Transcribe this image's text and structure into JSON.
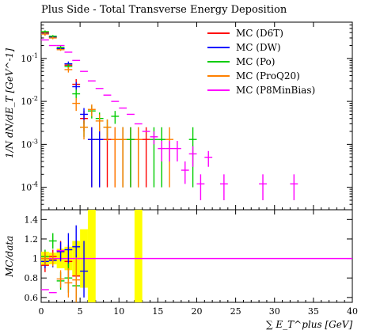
{
  "chart_data": {
    "type": "scatter",
    "title": "Plus Side - Total Transverse Energy Deposition",
    "xlabel": "∑ E_T^plus [GeV]",
    "top_ylabel": "1/N dN/dE_T [GeV^-1]",
    "bottom_ylabel": "MC/data",
    "top_yscale": "log",
    "top_yticks": [
      "10^-4",
      "10^-3",
      "10^-2",
      "10^-1"
    ],
    "top_ylim": [
      3e-05,
      0.7
    ],
    "bottom_ylim": [
      0.55,
      1.5
    ],
    "bottom_yticks": [
      "0.6",
      "0.8",
      "1",
      "1.2",
      "1.4"
    ],
    "xlim": [
      0,
      40
    ],
    "xticks": [
      "0",
      "5",
      "10",
      "15",
      "20",
      "25",
      "30",
      "35",
      "40"
    ],
    "legend_position": "top-right",
    "series": [
      {
        "name": "MC (D6T)",
        "color": "#ff0000",
        "points": [
          [
            0.5,
            0.4
          ],
          [
            1.5,
            0.32
          ],
          [
            2.5,
            0.17
          ],
          [
            3.5,
            0.07
          ],
          [
            4.5,
            0.025
          ],
          [
            5.5,
            0.004
          ],
          [
            6.5,
            0.0013
          ],
          [
            7.5,
            0.0013
          ],
          [
            8.5,
            0.0013
          ],
          [
            9.5,
            0.0013
          ],
          [
            10.5,
            0.0013
          ],
          [
            11.5,
            0.0013
          ],
          [
            12.5,
            0.0013
          ],
          [
            13.5,
            0.0013
          ]
        ],
        "errors": [
          [
            0.5,
            0.37,
            0.43
          ],
          [
            1.5,
            0.3,
            0.34
          ],
          [
            2.5,
            0.16,
            0.18
          ],
          [
            3.5,
            0.06,
            0.08
          ],
          [
            4.5,
            0.02,
            0.033
          ],
          [
            5.5,
            0.002,
            0.006
          ],
          [
            6.5,
            0.0001,
            0.0025
          ],
          [
            7.5,
            0.0001,
            0.0025
          ],
          [
            8.5,
            0.0001,
            0.0025
          ],
          [
            9.5,
            0.0001,
            0.0025
          ],
          [
            10.5,
            0.0001,
            0.0025
          ],
          [
            11.5,
            0.0001,
            0.0025
          ],
          [
            12.5,
            0.0001,
            0.0025
          ],
          [
            13.5,
            0.0001,
            0.0025
          ]
        ],
        "ratio": [
          [
            0.5,
            0.93
          ],
          [
            1.5,
            1.02
          ],
          [
            2.5,
            1.08
          ],
          [
            3.5,
            0.97
          ],
          [
            4.5,
            0.82
          ]
        ],
        "ratio_err": [
          [
            0.5,
            0.86,
            1.0
          ],
          [
            1.5,
            0.95,
            1.09
          ],
          [
            2.5,
            0.98,
            1.18
          ],
          [
            3.5,
            0.8,
            1.14
          ],
          [
            4.5,
            0.6,
            1.04
          ]
        ]
      },
      {
        "name": "MC (DW)",
        "color": "#0000ff",
        "points": [
          [
            0.5,
            0.38
          ],
          [
            1.5,
            0.31
          ],
          [
            2.5,
            0.17
          ],
          [
            3.5,
            0.075
          ],
          [
            4.5,
            0.022
          ],
          [
            5.5,
            0.005
          ],
          [
            6.5,
            0.0013
          ],
          [
            7.5,
            0.0013
          ]
        ],
        "errors": [
          [
            0.5,
            0.35,
            0.41
          ],
          [
            1.5,
            0.29,
            0.33
          ],
          [
            2.5,
            0.16,
            0.18
          ],
          [
            3.5,
            0.065,
            0.085
          ],
          [
            4.5,
            0.018,
            0.028
          ],
          [
            5.5,
            0.003,
            0.007
          ],
          [
            6.5,
            0.0001,
            0.0025
          ],
          [
            7.5,
            0.0001,
            0.0025
          ]
        ],
        "ratio": [
          [
            0.5,
            0.97
          ],
          [
            1.5,
            0.98
          ],
          [
            2.5,
            1.07
          ],
          [
            3.5,
            1.09
          ],
          [
            4.5,
            1.12
          ],
          [
            5.5,
            0.87
          ]
        ],
        "ratio_err": [
          [
            0.5,
            0.9,
            1.04
          ],
          [
            1.5,
            0.91,
            1.05
          ],
          [
            2.5,
            0.97,
            1.17
          ],
          [
            3.5,
            0.92,
            1.26
          ],
          [
            4.5,
            0.9,
            1.34
          ],
          [
            5.5,
            0.6,
            1.18
          ]
        ]
      },
      {
        "name": "MC (Po)",
        "color": "#00cc00",
        "points": [
          [
            0.5,
            0.42
          ],
          [
            1.5,
            0.33
          ],
          [
            2.5,
            0.18
          ],
          [
            3.5,
            0.065
          ],
          [
            4.5,
            0.015
          ],
          [
            5.5,
            0.0025
          ],
          [
            6.5,
            0.006
          ],
          [
            7.5,
            0.004
          ],
          [
            8.5,
            0.0025
          ],
          [
            9.5,
            0.0045
          ],
          [
            10.5,
            0.0013
          ],
          [
            11.5,
            0.0013
          ],
          [
            14.5,
            0.0013
          ],
          [
            15.5,
            0.0013
          ],
          [
            19.5,
            0.0013
          ]
        ],
        "errors": [
          [
            0.5,
            0.39,
            0.45
          ],
          [
            1.5,
            0.31,
            0.35
          ],
          [
            2.5,
            0.16,
            0.2
          ],
          [
            3.5,
            0.055,
            0.075
          ],
          [
            4.5,
            0.011,
            0.019
          ],
          [
            5.5,
            0.0015,
            0.0035
          ],
          [
            6.5,
            0.004,
            0.008
          ],
          [
            7.5,
            0.0025,
            0.0055
          ],
          [
            8.5,
            0.0012,
            0.0038
          ],
          [
            9.5,
            0.003,
            0.006
          ],
          [
            10.5,
            0.0001,
            0.0025
          ],
          [
            11.5,
            0.0001,
            0.0025
          ],
          [
            14.5,
            0.0001,
            0.0025
          ],
          [
            15.5,
            0.0001,
            0.0025
          ],
          [
            19.5,
            0.0001,
            0.0025
          ]
        ],
        "ratio": [
          [
            0.5,
            1.02
          ],
          [
            1.5,
            1.18
          ],
          [
            2.5,
            0.77
          ],
          [
            3.5,
            0.8
          ],
          [
            4.5,
            0.72
          ]
        ],
        "ratio_err": [
          [
            0.5,
            0.95,
            1.09
          ],
          [
            1.5,
            1.1,
            1.26
          ],
          [
            2.5,
            0.68,
            0.86
          ],
          [
            3.5,
            0.65,
            0.95
          ],
          [
            4.5,
            0.5,
            0.94
          ]
        ]
      },
      {
        "name": "MC (ProQ20)",
        "color": "#ff8000",
        "points": [
          [
            0.5,
            0.37
          ],
          [
            1.5,
            0.3
          ],
          [
            2.5,
            0.16
          ],
          [
            3.5,
            0.055
          ],
          [
            4.5,
            0.009
          ],
          [
            5.5,
            0.0025
          ],
          [
            6.5,
            0.0065
          ],
          [
            7.5,
            0.0035
          ],
          [
            8.5,
            0.0025
          ],
          [
            9.5,
            0.0013
          ],
          [
            10.5,
            0.0013
          ],
          [
            12.5,
            0.0013
          ],
          [
            16.5,
            0.0013
          ]
        ],
        "errors": [
          [
            0.5,
            0.34,
            0.4
          ],
          [
            1.5,
            0.28,
            0.32
          ],
          [
            2.5,
            0.15,
            0.17
          ],
          [
            3.5,
            0.047,
            0.063
          ],
          [
            4.5,
            0.006,
            0.012
          ],
          [
            5.5,
            0.0013,
            0.0037
          ],
          [
            6.5,
            0.0045,
            0.0085
          ],
          [
            7.5,
            0.002,
            0.005
          ],
          [
            8.5,
            0.0012,
            0.0038
          ],
          [
            9.5,
            0.0001,
            0.0025
          ],
          [
            10.5,
            0.0001,
            0.0025
          ],
          [
            12.5,
            0.0001,
            0.0025
          ],
          [
            16.5,
            0.0001,
            0.0025
          ]
        ],
        "ratio": [
          [
            0.5,
            1.0
          ],
          [
            1.5,
            0.99
          ],
          [
            2.5,
            0.79
          ],
          [
            3.5,
            0.75
          ],
          [
            4.5,
            0.78
          ]
        ],
        "ratio_err": [
          [
            0.5,
            0.93,
            1.07
          ],
          [
            1.5,
            0.92,
            1.06
          ],
          [
            2.5,
            0.7,
            0.88
          ],
          [
            3.5,
            0.6,
            0.9
          ],
          [
            4.5,
            0.55,
            1.01
          ]
        ]
      },
      {
        "name": "MC (P8MinBias)",
        "color": "#ff00ff",
        "points": [
          [
            0.5,
            0.27
          ],
          [
            1.5,
            0.2
          ],
          [
            2.5,
            0.2
          ],
          [
            3.5,
            0.14
          ],
          [
            4.5,
            0.09
          ],
          [
            5.5,
            0.05
          ],
          [
            6.5,
            0.03
          ],
          [
            7.5,
            0.02
          ],
          [
            8.5,
            0.014
          ],
          [
            9.5,
            0.01
          ],
          [
            10.5,
            0.007
          ],
          [
            11.5,
            0.005
          ],
          [
            12.5,
            0.003
          ],
          [
            13.5,
            0.002
          ],
          [
            14.5,
            0.0015
          ],
          [
            15.5,
            0.0008
          ],
          [
            16.5,
            0.0008
          ],
          [
            17.5,
            0.0008
          ],
          [
            18.5,
            0.00025
          ],
          [
            19.5,
            0.0006
          ],
          [
            20.5,
            0.00012
          ],
          [
            21.5,
            0.0005
          ],
          [
            23.5,
            0.00012
          ],
          [
            28.5,
            0.00012
          ],
          [
            32.5,
            0.00012
          ]
        ],
        "errors": [
          [
            14.5,
            0.001,
            0.002
          ],
          [
            15.5,
            0.0004,
            0.0012
          ],
          [
            16.5,
            0.0004,
            0.0012
          ],
          [
            17.5,
            0.0004,
            0.0012
          ],
          [
            18.5,
            0.00012,
            0.0004
          ],
          [
            19.5,
            0.0003,
            0.0009
          ],
          [
            20.5,
            5e-05,
            0.0002
          ],
          [
            21.5,
            0.0003,
            0.0007
          ],
          [
            23.5,
            5e-05,
            0.0002
          ],
          [
            28.5,
            5e-05,
            0.0002
          ],
          [
            32.5,
            5e-05,
            0.0002
          ]
        ],
        "ratio": [
          [
            0.5,
            0.68
          ],
          [
            1.5,
            0.65
          ],
          [
            2.5,
            1.08
          ]
        ],
        "ratio_err": []
      }
    ],
    "data_band_top": [
      [
        0,
        5,
        0.02
      ],
      [
        5,
        6.5,
        0.05
      ],
      [
        6.5,
        7,
        0.2
      ]
    ],
    "ratio_band": [
      [
        0,
        1,
        0.93,
        1.07
      ],
      [
        1,
        2,
        0.94,
        1.06
      ],
      [
        2,
        3,
        0.9,
        1.1
      ],
      [
        3,
        4,
        0.88,
        1.12
      ],
      [
        4,
        5,
        0.82,
        1.18
      ],
      [
        5,
        6,
        0.7,
        1.3
      ],
      [
        6,
        7,
        0.55,
        1.5
      ],
      [
        12,
        13,
        0.55,
        1.5
      ]
    ],
    "legend": [
      "MC (D6T)",
      "MC (DW)",
      "MC (Po)",
      "MC (ProQ20)",
      "MC (P8MinBias)"
    ]
  }
}
